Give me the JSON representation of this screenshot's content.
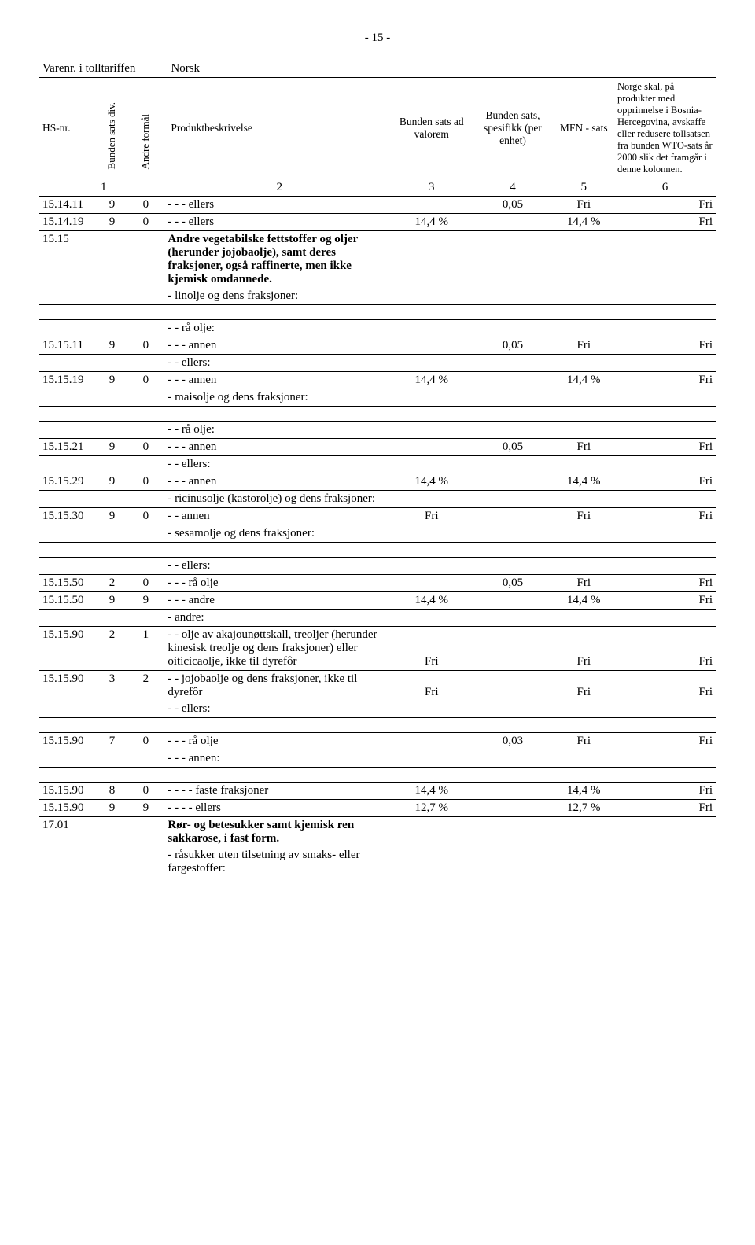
{
  "pageNumber": "- 15 -",
  "header": {
    "row1": {
      "c1": "Varenr. i tolltariffen",
      "c4": "Norsk"
    },
    "row2": {
      "c1": "HS-nr.",
      "c2": "Bunden sats div.",
      "c3": "Andre formål",
      "c4": "Produktbeskrivelse",
      "c5": "Bunden sats ad valorem",
      "c6": "Bunden sats, spesifikk (per enhet)",
      "c7": "MFN - sats",
      "c8": "Norge skal, på produkter med opprinnelse i Bosnia-Hercegovina, avskaffe eller redusere tollsatsen fra bunden WTO-sats år 2000 slik det framgår i denne kolonnen."
    },
    "row3": {
      "c1": "1",
      "c4": "2",
      "c5": "3",
      "c6": "4",
      "c7": "5",
      "c8": "6"
    }
  },
  "rows": [
    {
      "type": "data",
      "c1": "15.14.11",
      "c2": "9",
      "c3": "0",
      "c4": "- - - ellers",
      "c6": "0,05",
      "c7": "Fri",
      "c8": "Fri",
      "bbDesc": true
    },
    {
      "type": "data",
      "c1": "15.14.19",
      "c2": "9",
      "c3": "0",
      "c4": "- - - ellers",
      "c5": "14,4 %",
      "c7": "14,4 %",
      "c8": "Fri",
      "bbDesc": true
    },
    {
      "type": "data",
      "c1": "15.15",
      "c4": "Andre vegetabilske fettstoffer og oljer (herunder jojobaolje), samt deres fraksjoner, også raffinerte, men ikke kjemisk omdannede.",
      "bold": true
    },
    {
      "type": "sub",
      "c4": "- linolje og dens fraksjoner:",
      "fullUnderline": true,
      "gapAfter": true
    },
    {
      "type": "sub",
      "c4": "- - rå olje:",
      "fullTopline": true,
      "bbDesc": true
    },
    {
      "type": "data",
      "c1": "15.15.11",
      "c2": "9",
      "c3": "0",
      "c4": "- - - annen",
      "c6": "0,05",
      "c7": "Fri",
      "c8": "Fri",
      "bbDesc": true
    },
    {
      "type": "sub",
      "c4": "- - ellers:",
      "bbDesc": true
    },
    {
      "type": "data",
      "c1": "15.15.19",
      "c2": "9",
      "c3": "0",
      "c4": "- - - annen",
      "c5": "14,4 %",
      "c7": "14,4 %",
      "c8": "Fri",
      "bbDesc": true
    },
    {
      "type": "sub",
      "c4": "- maisolje og dens fraksjoner:",
      "fullUnderline": true,
      "gapAfter": true
    },
    {
      "type": "sub",
      "c4": "- - rå olje:",
      "fullTopline": true,
      "bbDesc": true
    },
    {
      "type": "data",
      "c1": "15.15.21",
      "c2": "9",
      "c3": "0",
      "c4": "- - - annen",
      "c6": "0,05",
      "c7": "Fri",
      "c8": "Fri",
      "bbDesc": true
    },
    {
      "type": "sub",
      "c4": "- - ellers:",
      "bbDesc": true
    },
    {
      "type": "data",
      "c1": "15.15.29",
      "c2": "9",
      "c3": "0",
      "c4": "- - - annen",
      "c5": "14,4 %",
      "c7": "14,4 %",
      "c8": "Fri",
      "bbDesc": true
    },
    {
      "type": "sub",
      "c4": "- ricinusolje (kastorolje) og dens fraksjoner:",
      "bbDesc": true
    },
    {
      "type": "data",
      "c1": "15.15.30",
      "c2": "9",
      "c3": "0",
      "c4": "- - annen",
      "c5": "Fri",
      "c7": "Fri",
      "c8": "Fri",
      "bbDesc": true
    },
    {
      "type": "sub",
      "c4": "- sesamolje og dens fraksjoner:",
      "fullUnderline": true,
      "gapAfter": true
    },
    {
      "type": "sub",
      "c4": "- - ellers:",
      "fullTopline": true,
      "bbDesc": true
    },
    {
      "type": "data",
      "c1": "15.15.50",
      "c2": "2",
      "c3": "0",
      "c4": "- - - rå olje",
      "c6": "0,05",
      "c7": "Fri",
      "c8": "Fri",
      "bbDesc": true
    },
    {
      "type": "data",
      "c1": "15.15.50",
      "c2": "9",
      "c3": "9",
      "c4": "- - - andre",
      "c5": "14,4 %",
      "c7": "14,4 %",
      "c8": "Fri",
      "bbDesc": true
    },
    {
      "type": "sub",
      "c4": "- andre:",
      "bbDesc": true
    },
    {
      "type": "data",
      "c1": "15.15.90",
      "c2": "2",
      "c3": "1",
      "c4": "- - olje av akajounøttskall, treoljer (herunder kinesisk treolje og dens fraksjoner) eller oiticicaolje, ikke til dyrefôr",
      "c5": "Fri",
      "c7": "Fri",
      "c8": "Fri",
      "valsBottom": true
    },
    {
      "type": "data",
      "c1": "15.15.90",
      "c2": "3",
      "c3": "2",
      "c4": "- - jojobaolje og dens fraksjoner, ikke til dyrefôr",
      "c5": "Fri",
      "c7": "Fri",
      "c8": "Fri",
      "valsBottom": true,
      "btAll": true
    },
    {
      "type": "sub",
      "c4": "- - ellers:",
      "fullUnderline": true,
      "gapAfter": true
    },
    {
      "type": "data",
      "c1": "15.15.90",
      "c2": "7",
      "c3": "0",
      "c4": "- - - rå olje",
      "c6": "0,03",
      "c7": "Fri",
      "c8": "Fri",
      "fullTopline": true,
      "bbDesc": true
    },
    {
      "type": "sub",
      "c4": "- - - annen:",
      "fullUnderline": true,
      "gapAfter": true
    },
    {
      "type": "data",
      "c1": "15.15.90",
      "c2": "8",
      "c3": "0",
      "c4": "- - - - faste fraksjoner",
      "c5": "14,4 %",
      "c7": "14,4 %",
      "c8": "Fri",
      "fullTopline": true,
      "bbDesc": true
    },
    {
      "type": "data",
      "c1": "15.15.90",
      "c2": "9",
      "c3": "9",
      "c4": "- - - - ellers",
      "c5": "12,7 %",
      "c7": "12,7 %",
      "c8": "Fri",
      "bbDesc": true
    },
    {
      "type": "data",
      "c1": "17.01",
      "c4": "Rør- og betesukker samt kjemisk ren sakkarose, i fast form.",
      "bold": true
    },
    {
      "type": "sub",
      "c4": "- råsukker uten tilsetning av smaks- eller fargestoffer:"
    }
  ]
}
